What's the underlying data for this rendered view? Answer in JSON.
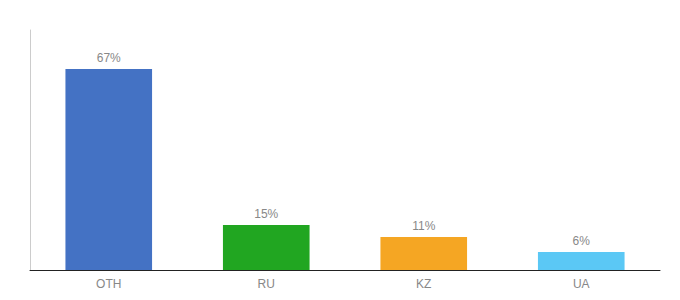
{
  "chart_data": {
    "type": "bar",
    "categories": [
      "OTH",
      "RU",
      "KZ",
      "UA"
    ],
    "values": [
      67,
      15,
      11,
      6
    ],
    "value_labels": [
      "67%",
      "15%",
      "11%",
      "6%"
    ],
    "colors": [
      "#4472c4",
      "#21a621",
      "#f5a623",
      "#5bc8f5"
    ],
    "ylim": [
      0,
      80
    ],
    "data_labels": true,
    "tick_labels": "x",
    "grid": false
  }
}
